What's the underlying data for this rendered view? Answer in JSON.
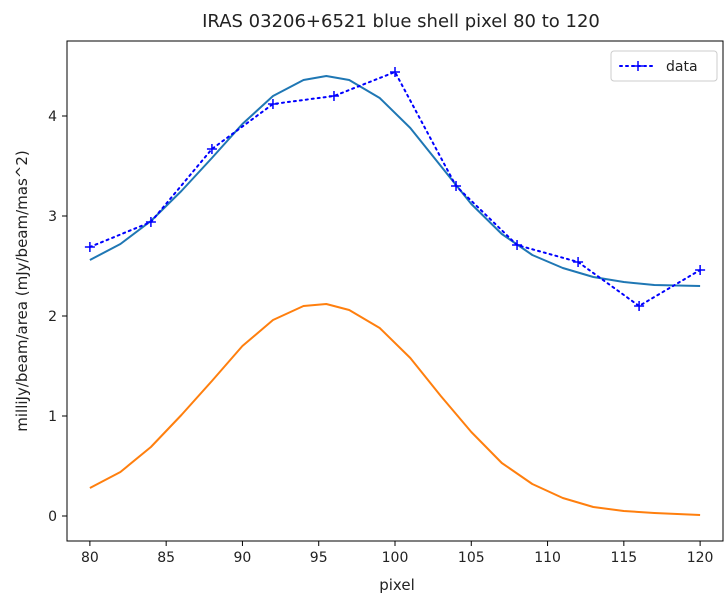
{
  "chart_data": {
    "type": "line",
    "title": "IRAS 03206+6521 blue shell pixel 80 to 120",
    "xlabel": "pixel",
    "ylabel": "milliJy/beam/area (mJy/beam/mas^2)",
    "xlim": [
      78.5,
      121.5
    ],
    "ylim": [
      -0.25,
      4.75
    ],
    "xticks": [
      80,
      85,
      90,
      95,
      100,
      105,
      110,
      115,
      120
    ],
    "yticks": [
      0,
      1,
      2,
      3,
      4
    ],
    "grid": false,
    "legend_position": "top-right",
    "colors": {
      "data": "#0000ff",
      "fit": "#1f77b4",
      "gaussian": "#ff7f0e"
    },
    "series": [
      {
        "name": "data",
        "style": "dotted-plus",
        "x": [
          80,
          84,
          88,
          92,
          96,
          100,
          104,
          108,
          112,
          116,
          120
        ],
        "y": [
          2.69,
          2.94,
          3.67,
          4.12,
          4.2,
          4.44,
          3.3,
          2.71,
          2.54,
          2.1,
          2.46
        ]
      },
      {
        "style": "solid",
        "x": [
          80,
          82,
          84,
          86,
          88,
          90,
          92,
          94,
          95.5,
          97,
          99,
          101,
          103,
          105,
          107,
          109,
          111,
          113,
          115,
          117,
          120
        ],
        "y": [
          2.56,
          2.72,
          2.95,
          3.25,
          3.58,
          3.92,
          4.2,
          4.36,
          4.4,
          4.36,
          4.18,
          3.88,
          3.5,
          3.12,
          2.82,
          2.61,
          2.48,
          2.39,
          2.34,
          2.31,
          2.3
        ]
      },
      {
        "style": "solid",
        "x": [
          80,
          82,
          84,
          86,
          88,
          90,
          92,
          94,
          95.5,
          97,
          99,
          101,
          103,
          105,
          107,
          109,
          111,
          113,
          115,
          117,
          120
        ],
        "y": [
          0.28,
          0.44,
          0.69,
          1.01,
          1.35,
          1.7,
          1.96,
          2.1,
          2.12,
          2.06,
          1.88,
          1.58,
          1.2,
          0.84,
          0.53,
          0.32,
          0.18,
          0.09,
          0.05,
          0.03,
          0.01
        ]
      }
    ]
  }
}
